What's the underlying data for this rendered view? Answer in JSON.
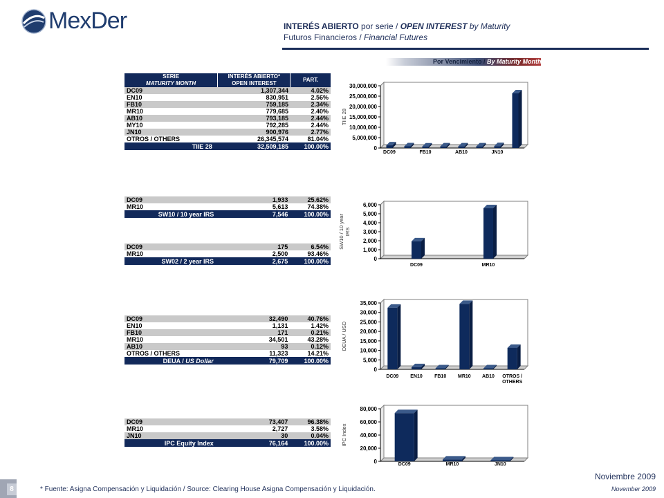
{
  "logo": {
    "text": "MexDer",
    "icon": "mexder-globe-icon"
  },
  "title": {
    "line1": {
      "es_bold": "INTERÉS ABIERTO",
      "es_rest": " por serie / ",
      "en_bold": "OPEN INTEREST",
      "en_rest": " by Maturity"
    },
    "line2": {
      "es": "Futuros Financieros / ",
      "en": "Financial Futures"
    }
  },
  "banner": {
    "es": "Por Vencimiento /",
    "en": "By Maturity Month"
  },
  "table_header": {
    "serie": "SERIE",
    "serie_en": "MATURITY MONTH",
    "interes": "INTERÉS ABIERTO*",
    "interes_en": "OPEN INTEREST",
    "part": "PART."
  },
  "tables": [
    {
      "rows": [
        [
          "DC09",
          "1,307,344",
          "4.02%"
        ],
        [
          "EN10",
          "830,951",
          "2.56%"
        ],
        [
          "FB10",
          "759,185",
          "2.34%"
        ],
        [
          "MR10",
          "779,685",
          "2.40%"
        ],
        [
          "AB10",
          "793,185",
          "2.44%"
        ],
        [
          "MY10",
          "792,285",
          "2.44%"
        ],
        [
          "JN10",
          "900,976",
          "2.77%"
        ],
        [
          "OTROS / OTHERS",
          "26,345,574",
          "81.04%"
        ]
      ],
      "total": [
        "TIIE 28",
        "32,509,185",
        "100.00%"
      ]
    },
    {
      "rows": [
        [
          "DC09",
          "1,933",
          "25.62%"
        ],
        [
          "MR10",
          "5,613",
          "74.38%"
        ]
      ],
      "total": [
        "SW10 / 10 year IRS",
        "7,546",
        "100.00%"
      ]
    },
    {
      "rows": [
        [
          "DC09",
          "175",
          "6.54%"
        ],
        [
          "MR10",
          "2,500",
          "93.46%"
        ]
      ],
      "total": [
        "SW02 / 2 year IRS",
        "2,675",
        "100.00%"
      ]
    },
    {
      "rows": [
        [
          "DC09",
          "32,490",
          "40.76%"
        ],
        [
          "EN10",
          "1,131",
          "1.42%"
        ],
        [
          "FB10",
          "171",
          "0.21%"
        ],
        [
          "MR10",
          "34,501",
          "43.28%"
        ],
        [
          "AB10",
          "93",
          "0.12%"
        ],
        [
          "OTROS / OTHERS",
          "11,323",
          "14.21%"
        ]
      ],
      "total_es": "DEUA / ",
      "total_en": "US Dollar",
      "total": [
        "DEUA / US Dollar",
        "79,709",
        "100.00%"
      ]
    },
    {
      "rows": [
        [
          "DC09",
          "73,407",
          "96.38%"
        ],
        [
          "MR10",
          "2,727",
          "3.58%"
        ],
        [
          "JN10",
          "30",
          "0.04%"
        ]
      ],
      "total": [
        "IPC Equity Index",
        "76,164",
        "100.00%"
      ]
    }
  ],
  "chart_data": [
    {
      "type": "bar",
      "ylabel": "TIIE 28",
      "categories": [
        "DC09",
        "EN10",
        "FB10",
        "MR10",
        "AB10",
        "MY10",
        "JN10",
        "OTROS / OTHERS"
      ],
      "category_labels": [
        "DC09",
        "",
        "FB10",
        "",
        "AB10",
        "",
        "JN10",
        ""
      ],
      "values": [
        1307344,
        830951,
        759185,
        779685,
        793185,
        792285,
        900976,
        26345574
      ],
      "ylim": [
        0,
        30000000
      ],
      "yticks": [
        "0",
        "5,000,000",
        "10,000,000",
        "15,000,000",
        "20,000,000",
        "25,000,000",
        "30,000,000"
      ]
    },
    {
      "type": "bar",
      "ylabel": "SW10 / 10 year IRS",
      "categories": [
        "DC09",
        "MR10"
      ],
      "category_labels": [
        "DC09",
        "MR10"
      ],
      "values": [
        1933,
        5613
      ],
      "ylim": [
        0,
        6000
      ],
      "yticks": [
        "0",
        "1,000",
        "2,000",
        "3,000",
        "4,000",
        "5,000",
        "6,000"
      ]
    },
    {
      "type": "bar",
      "ylabel": "DEUA / USD",
      "categories": [
        "DC09",
        "EN10",
        "FB10",
        "MR10",
        "AB10",
        "OTROS / OTHERS"
      ],
      "category_labels": [
        "DC09",
        "EN10",
        "FB10",
        "MR10",
        "AB10",
        "OTROS / OTHERS"
      ],
      "values": [
        32490,
        1131,
        171,
        34501,
        93,
        11323
      ],
      "ylim": [
        0,
        35000
      ],
      "yticks": [
        "0",
        "5,000",
        "10,000",
        "15,000",
        "20,000",
        "25,000",
        "30,000",
        "35,000"
      ]
    },
    {
      "type": "bar",
      "ylabel": "IPC Index",
      "categories": [
        "DC09",
        "MR10",
        "JN10"
      ],
      "category_labels": [
        "DC09",
        "MR10",
        "JN10"
      ],
      "values": [
        73407,
        2727,
        30
      ],
      "ylim": [
        0,
        80000
      ],
      "yticks": [
        "0",
        "20,000",
        "40,000",
        "60,000",
        "80,000"
      ]
    }
  ],
  "footer": {
    "date_es": "Noviembre 2009",
    "date_en": "November  2009",
    "page": "8",
    "footnote": "* Fuente: Asigna Compensación y Liquidación / Source: Clearing House Asigna Compensación y Liquidación."
  },
  "colors": {
    "navy": "#12295a",
    "bar": "#0e2a5c",
    "bar_side": "#3b5a8a",
    "band": "#c9c9c9"
  }
}
